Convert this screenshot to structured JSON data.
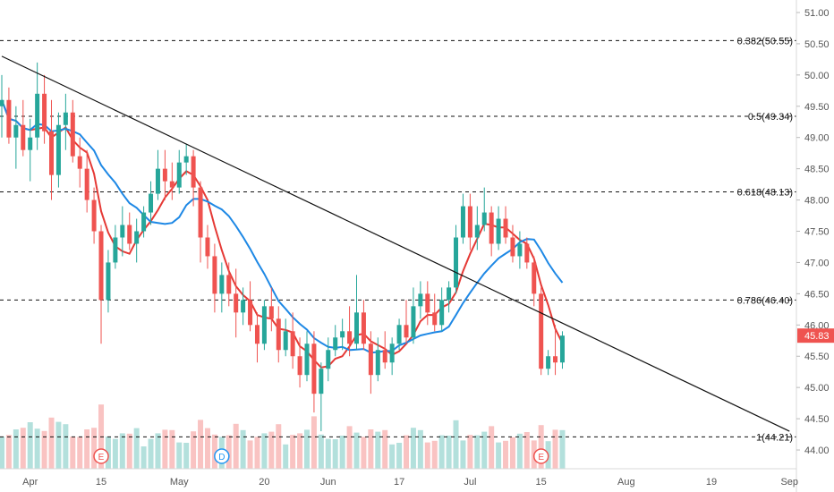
{
  "chart_data": {
    "type": "candlestick",
    "y_axis": {
      "ticks": [
        "51.00",
        "50.50",
        "50.00",
        "49.50",
        "49.00",
        "48.50",
        "48.00",
        "47.50",
        "47.00",
        "46.50",
        "46.00",
        "45.50",
        "45.00",
        "44.50",
        "44.00"
      ],
      "range": [
        43.7,
        51.2
      ],
      "position": "right"
    },
    "x_axis": {
      "ticks": [
        {
          "label": "Apr",
          "index": 4
        },
        {
          "label": "15",
          "index": 14
        },
        {
          "label": "May",
          "index": 25
        },
        {
          "label": "20",
          "index": 37
        },
        {
          "label": "Jun",
          "index": 46
        },
        {
          "label": "17",
          "index": 56
        },
        {
          "label": "Jul",
          "index": 66
        },
        {
          "label": "15",
          "index": 76
        },
        {
          "label": "Aug",
          "index": 88
        },
        {
          "label": "19",
          "index": 100
        },
        {
          "label": "Sep",
          "index": 111
        }
      ]
    },
    "last_price": {
      "value": 45.83,
      "label": "45.83",
      "color": "#ef5350"
    },
    "fib_levels": [
      {
        "label": "0.382(50.55)",
        "value": 50.55
      },
      {
        "label": "0.5(49.34)",
        "value": 49.34
      },
      {
        "label": "0.618(48.13)",
        "value": 48.13
      },
      {
        "label": "0.786(46.40)",
        "value": 46.4
      },
      {
        "label": "1(44.21)",
        "value": 44.21
      }
    ],
    "trendline": {
      "start": {
        "index": 0,
        "value": 50.3
      },
      "end": {
        "index": 111,
        "value": 44.3
      }
    },
    "events": [
      {
        "label": "E",
        "index": 14,
        "color": "#ef5350"
      },
      {
        "label": "D",
        "index": 31,
        "color": "#2196f3"
      },
      {
        "label": "E",
        "index": 76,
        "color": "#ef5350"
      }
    ],
    "ohlc": [
      [
        49.5,
        50.0,
        49.0,
        49.6
      ],
      [
        49.6,
        49.8,
        48.9,
        49.0
      ],
      [
        49.0,
        49.5,
        48.5,
        49.2
      ],
      [
        49.2,
        49.6,
        48.7,
        48.8
      ],
      [
        48.8,
        49.3,
        48.3,
        49.0
      ],
      [
        49.0,
        50.2,
        48.8,
        49.7
      ],
      [
        49.7,
        50.0,
        48.9,
        49.1
      ],
      [
        49.1,
        49.6,
        48.0,
        48.4
      ],
      [
        48.4,
        49.4,
        48.2,
        49.2
      ],
      [
        49.2,
        49.7,
        48.8,
        49.4
      ],
      [
        49.4,
        49.6,
        48.6,
        48.7
      ],
      [
        48.7,
        49.0,
        48.2,
        48.5
      ],
      [
        48.5,
        48.8,
        47.8,
        48.0
      ],
      [
        48.0,
        48.2,
        47.3,
        47.5
      ],
      [
        47.5,
        47.6,
        45.7,
        46.4
      ],
      [
        46.4,
        47.2,
        46.2,
        47.0
      ],
      [
        47.0,
        47.6,
        46.9,
        47.4
      ],
      [
        47.4,
        47.9,
        47.1,
        47.6
      ],
      [
        47.6,
        47.8,
        47.2,
        47.3
      ],
      [
        47.3,
        47.7,
        47.0,
        47.5
      ],
      [
        47.5,
        47.9,
        47.4,
        47.8
      ],
      [
        47.8,
        48.3,
        47.6,
        48.1
      ],
      [
        48.1,
        48.8,
        48.0,
        48.5
      ],
      [
        48.5,
        48.8,
        48.0,
        48.3
      ],
      [
        48.3,
        48.6,
        48.0,
        48.2
      ],
      [
        48.2,
        48.8,
        48.1,
        48.6
      ],
      [
        48.6,
        48.9,
        48.4,
        48.7
      ],
      [
        48.7,
        48.8,
        47.9,
        48.2
      ],
      [
        48.2,
        48.3,
        47.0,
        47.4
      ],
      [
        47.4,
        47.6,
        46.9,
        47.1
      ],
      [
        47.1,
        47.3,
        46.2,
        46.5
      ],
      [
        46.5,
        47.0,
        46.2,
        46.8
      ],
      [
        46.8,
        47.0,
        46.3,
        46.5
      ],
      [
        46.5,
        46.9,
        45.8,
        46.2
      ],
      [
        46.2,
        46.6,
        46.0,
        46.4
      ],
      [
        46.4,
        46.7,
        45.9,
        46.0
      ],
      [
        46.0,
        46.2,
        45.4,
        45.7
      ],
      [
        45.7,
        46.4,
        45.6,
        46.3
      ],
      [
        46.3,
        46.6,
        45.9,
        46.1
      ],
      [
        46.1,
        46.3,
        45.4,
        45.6
      ],
      [
        45.6,
        46.1,
        45.5,
        45.9
      ],
      [
        45.9,
        46.2,
        45.3,
        45.5
      ],
      [
        45.5,
        45.8,
        45.0,
        45.2
      ],
      [
        45.2,
        45.9,
        45.1,
        45.7
      ],
      [
        45.7,
        45.9,
        44.6,
        44.9
      ],
      [
        44.9,
        45.4,
        44.3,
        45.3
      ],
      [
        45.3,
        45.8,
        45.1,
        45.6
      ],
      [
        45.6,
        46.0,
        45.5,
        45.8
      ],
      [
        45.8,
        46.1,
        45.6,
        45.9
      ],
      [
        45.9,
        46.3,
        45.5,
        45.7
      ],
      [
        45.7,
        46.8,
        45.6,
        46.2
      ],
      [
        46.2,
        46.4,
        45.6,
        45.7
      ],
      [
        45.7,
        45.9,
        44.9,
        45.2
      ],
      [
        45.2,
        45.8,
        45.1,
        45.6
      ],
      [
        45.6,
        45.9,
        45.3,
        45.4
      ],
      [
        45.4,
        45.8,
        45.2,
        45.7
      ],
      [
        45.7,
        46.1,
        45.6,
        46.0
      ],
      [
        46.0,
        46.4,
        45.7,
        45.8
      ],
      [
        45.8,
        46.6,
        45.7,
        46.3
      ],
      [
        46.3,
        46.7,
        46.1,
        46.5
      ],
      [
        46.5,
        46.7,
        46.0,
        46.2
      ],
      [
        46.2,
        46.5,
        45.9,
        46.0
      ],
      [
        46.0,
        46.6,
        45.9,
        46.4
      ],
      [
        46.4,
        46.7,
        46.2,
        46.6
      ],
      [
        46.6,
        47.6,
        46.5,
        47.4
      ],
      [
        47.4,
        48.1,
        47.3,
        47.9
      ],
      [
        47.9,
        48.1,
        47.2,
        47.4
      ],
      [
        47.4,
        47.9,
        47.2,
        47.6
      ],
      [
        47.6,
        48.2,
        47.5,
        47.8
      ],
      [
        47.8,
        47.9,
        47.1,
        47.3
      ],
      [
        47.3,
        47.9,
        47.2,
        47.7
      ],
      [
        47.7,
        47.9,
        47.3,
        47.4
      ],
      [
        47.4,
        47.6,
        47.0,
        47.1
      ],
      [
        47.1,
        47.5,
        46.9,
        47.3
      ],
      [
        47.3,
        47.4,
        46.9,
        47.0
      ],
      [
        47.0,
        47.1,
        46.3,
        46.5
      ],
      [
        46.5,
        46.6,
        45.2,
        45.3
      ],
      [
        45.3,
        45.6,
        45.2,
        45.5
      ],
      [
        45.5,
        46.0,
        45.2,
        45.4
      ],
      [
        45.4,
        45.9,
        45.3,
        45.83
      ]
    ]
  }
}
